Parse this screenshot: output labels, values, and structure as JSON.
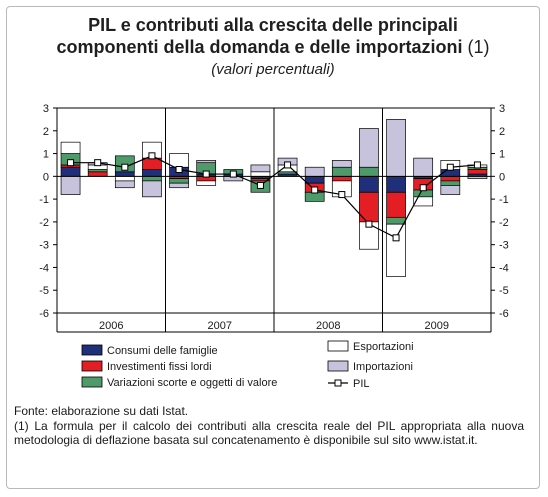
{
  "title_line1": "PIL e contributi alla crescita delle principali",
  "title_line2": "componenti della domanda e delle importazioni",
  "title_note": "(1)",
  "subtitle": "(valori percentuali)",
  "source": "Fonte: elaborazione su dati Istat.",
  "footnote": "(1) La formula per il calcolo dei contributi alla crescita reale del PIL appropriata alla nuova metodologia di deflazione basata sul concatenamento è disponibile sul sito www.istat.it.",
  "chart_data": {
    "type": "bar",
    "stacked": true,
    "ylim": [
      -6,
      3
    ],
    "yticks": [
      3,
      2,
      1,
      0,
      -1,
      -2,
      -3,
      -4,
      -5,
      -6
    ],
    "grid": false,
    "legend_position": "bottom",
    "years": [
      "2006",
      "2007",
      "2008",
      "2009"
    ],
    "categories": [
      "2006 T1",
      "2006 T2",
      "2006 T3",
      "2006 T4",
      "2007 T1",
      "2007 T2",
      "2007 T3",
      "2007 T4",
      "2008 T1",
      "2008 T2",
      "2008 T3",
      "2008 T4",
      "2009 T1",
      "2009 T2",
      "2009 T3",
      "2009 T4"
    ],
    "colors": {
      "consumi": "#1f2f7a",
      "investimenti": "#e31e24",
      "scorte": "#4f9a6b",
      "esportazioni": "#ffffff",
      "importazioni": "#c8c3dd",
      "pil": "#000000"
    },
    "series": [
      {
        "key": "consumi",
        "name": "Consumi delle famiglie",
        "values": [
          0.4,
          0.0,
          0.2,
          0.3,
          0.4,
          0.1,
          0.1,
          -0.1,
          0.1,
          -0.3,
          0.0,
          -0.7,
          -0.7,
          -0.1,
          0.3,
          0.1
        ]
      },
      {
        "key": "investimenti",
        "name": "Investimenti fissi lordi",
        "values": [
          0.1,
          0.2,
          0.0,
          0.5,
          -0.1,
          -0.2,
          0.0,
          -0.1,
          0.0,
          -0.4,
          -0.2,
          -1.3,
          -1.1,
          -0.5,
          -0.2,
          0.2
        ]
      },
      {
        "key": "scorte",
        "name": "Variazioni scorte e oggetti di valore",
        "values": [
          0.5,
          0.1,
          0.7,
          -0.2,
          -0.2,
          0.5,
          0.2,
          -0.5,
          0.1,
          -0.4,
          0.4,
          0.4,
          -0.3,
          -0.3,
          -0.2,
          0.1
        ]
      },
      {
        "key": "esportazioni",
        "name": "Esportazioni",
        "values": [
          0.5,
          0.2,
          -0.2,
          0.7,
          0.6,
          -0.2,
          0.0,
          0.2,
          0.3,
          0.0,
          -0.7,
          -1.2,
          -2.3,
          -0.4,
          0.4,
          0.1
        ]
      },
      {
        "key": "importazioni",
        "name": "Importazioni",
        "values": [
          -0.8,
          0.1,
          -0.3,
          -0.7,
          -0.2,
          0.1,
          -0.2,
          0.3,
          0.3,
          0.4,
          0.3,
          1.7,
          2.5,
          0.8,
          -0.4,
          -0.1
        ]
      }
    ],
    "pil": {
      "name": "PIL",
      "values": [
        0.6,
        0.6,
        0.4,
        0.9,
        0.3,
        0.1,
        0.1,
        -0.4,
        0.5,
        -0.6,
        -0.8,
        -2.1,
        -2.7,
        -0.5,
        0.4,
        0.5
      ]
    }
  }
}
